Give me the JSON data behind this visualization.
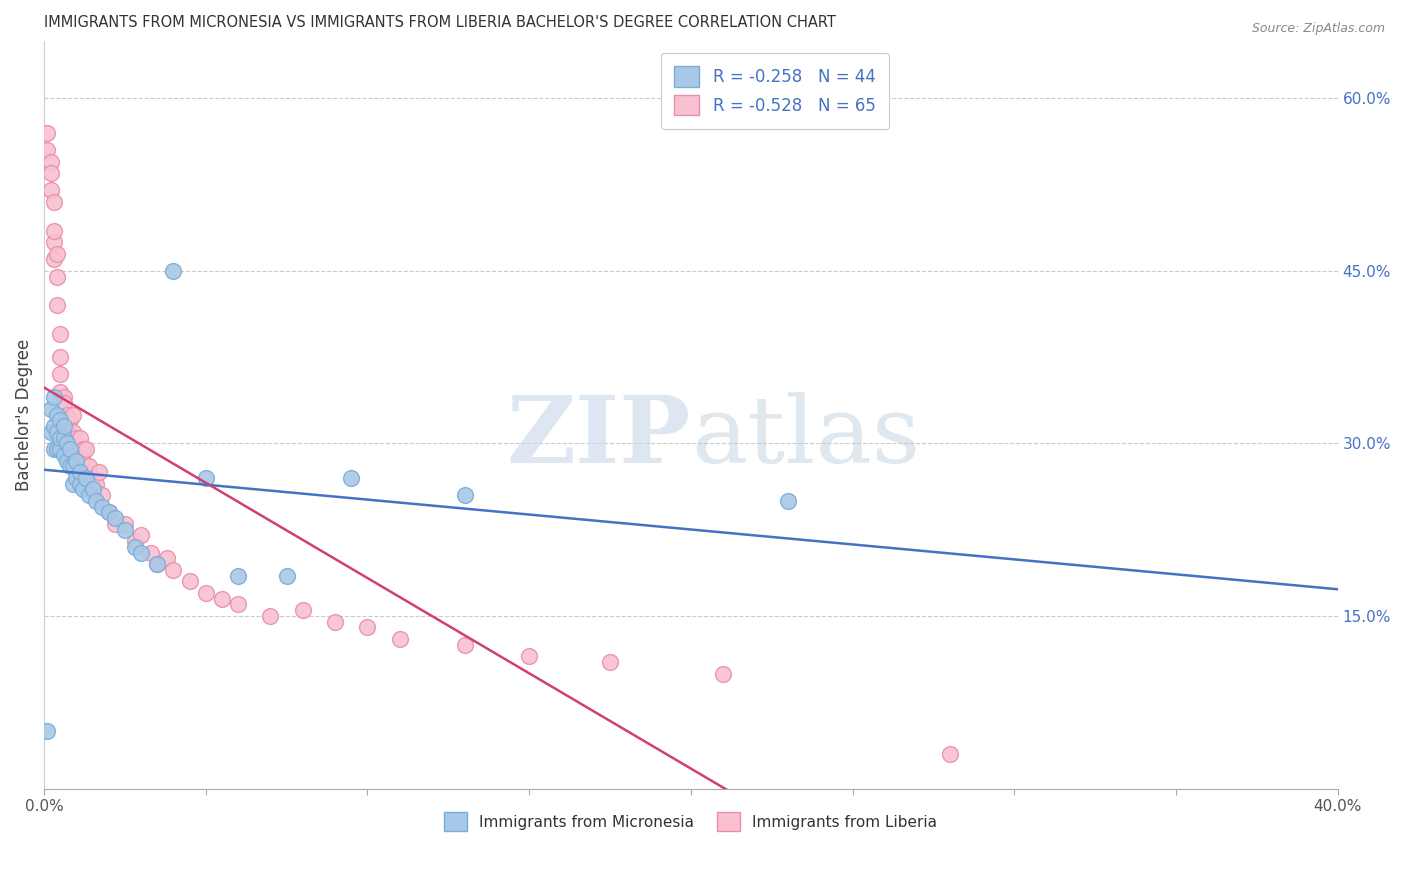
{
  "title": "IMMIGRANTS FROM MICRONESIA VS IMMIGRANTS FROM LIBERIA BACHELOR'S DEGREE CORRELATION CHART",
  "source": "Source: ZipAtlas.com",
  "ylabel": "Bachelor's Degree",
  "xlim": [
    0.0,
    0.4
  ],
  "ylim": [
    0.0,
    0.65
  ],
  "xticks": [
    0.0,
    0.05,
    0.1,
    0.15,
    0.2,
    0.25,
    0.3,
    0.35,
    0.4
  ],
  "yticks_right": [
    0.15,
    0.3,
    0.45,
    0.6
  ],
  "ytick_labels_right": [
    "15.0%",
    "30.0%",
    "45.0%",
    "60.0%"
  ],
  "legend_label1": "R = -0.258   N = 44",
  "legend_label2": "R = -0.528   N = 65",
  "legend_bottom1": "Immigrants from Micronesia",
  "legend_bottom2": "Immigrants from Liberia",
  "blue_color": "#a8c8e8",
  "blue_edge": "#7aadd4",
  "pink_color": "#f8c0d0",
  "pink_edge": "#e890a8",
  "line_blue": "#4472c4",
  "line_pink": "#d04070",
  "watermark_zip": "ZIP",
  "watermark_atlas": "atlas",
  "mic_x": [
    0.001,
    0.002,
    0.002,
    0.003,
    0.003,
    0.003,
    0.004,
    0.004,
    0.004,
    0.005,
    0.005,
    0.005,
    0.006,
    0.006,
    0.006,
    0.007,
    0.007,
    0.008,
    0.008,
    0.009,
    0.009,
    0.01,
    0.01,
    0.011,
    0.011,
    0.012,
    0.013,
    0.014,
    0.015,
    0.016,
    0.018,
    0.02,
    0.022,
    0.025,
    0.028,
    0.03,
    0.035,
    0.04,
    0.05,
    0.06,
    0.075,
    0.095,
    0.13,
    0.23
  ],
  "mic_y": [
    0.05,
    0.31,
    0.33,
    0.295,
    0.315,
    0.34,
    0.295,
    0.31,
    0.325,
    0.295,
    0.305,
    0.32,
    0.29,
    0.305,
    0.315,
    0.285,
    0.3,
    0.28,
    0.295,
    0.265,
    0.28,
    0.27,
    0.285,
    0.265,
    0.275,
    0.26,
    0.27,
    0.255,
    0.26,
    0.25,
    0.245,
    0.24,
    0.235,
    0.225,
    0.21,
    0.205,
    0.195,
    0.45,
    0.27,
    0.185,
    0.185,
    0.27,
    0.255,
    0.25
  ],
  "lib_x": [
    0.001,
    0.001,
    0.002,
    0.002,
    0.002,
    0.003,
    0.003,
    0.003,
    0.003,
    0.004,
    0.004,
    0.004,
    0.005,
    0.005,
    0.005,
    0.005,
    0.006,
    0.006,
    0.006,
    0.006,
    0.007,
    0.007,
    0.007,
    0.007,
    0.008,
    0.008,
    0.009,
    0.009,
    0.009,
    0.01,
    0.01,
    0.011,
    0.011,
    0.012,
    0.012,
    0.013,
    0.013,
    0.014,
    0.015,
    0.016,
    0.017,
    0.018,
    0.02,
    0.022,
    0.025,
    0.028,
    0.03,
    0.033,
    0.035,
    0.038,
    0.04,
    0.045,
    0.05,
    0.055,
    0.06,
    0.07,
    0.08,
    0.09,
    0.1,
    0.11,
    0.13,
    0.15,
    0.175,
    0.21,
    0.28
  ],
  "lib_y": [
    0.57,
    0.555,
    0.545,
    0.535,
    0.52,
    0.51,
    0.475,
    0.46,
    0.485,
    0.465,
    0.445,
    0.42,
    0.395,
    0.375,
    0.36,
    0.345,
    0.34,
    0.32,
    0.335,
    0.31,
    0.31,
    0.325,
    0.305,
    0.29,
    0.32,
    0.3,
    0.31,
    0.295,
    0.325,
    0.305,
    0.29,
    0.305,
    0.285,
    0.295,
    0.285,
    0.275,
    0.295,
    0.28,
    0.27,
    0.265,
    0.275,
    0.255,
    0.24,
    0.23,
    0.23,
    0.215,
    0.22,
    0.205,
    0.195,
    0.2,
    0.19,
    0.18,
    0.17,
    0.165,
    0.16,
    0.15,
    0.155,
    0.145,
    0.14,
    0.13,
    0.125,
    0.115,
    0.11,
    0.1,
    0.03
  ]
}
